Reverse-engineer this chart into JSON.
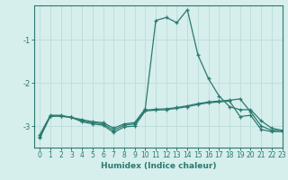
{
  "xlabel": "Humidex (Indice chaleur)",
  "ylabel": "",
  "xlim": [
    -0.5,
    23
  ],
  "ylim": [
    -3.5,
    -0.2
  ],
  "yticks": [
    -3,
    -2,
    -1
  ],
  "xticks": [
    0,
    1,
    2,
    3,
    4,
    5,
    6,
    7,
    8,
    9,
    10,
    11,
    12,
    13,
    14,
    15,
    16,
    17,
    18,
    19,
    20,
    21,
    22,
    23
  ],
  "bg_color": "#d6eeec",
  "grid_color": "#c0dedd",
  "line_color": "#2a7a70",
  "line1_x": [
    0,
    1,
    2,
    3,
    4,
    5,
    6,
    7,
    8,
    9,
    10,
    11,
    12,
    13,
    14,
    15,
    16,
    17,
    18,
    19,
    20,
    21,
    22,
    23
  ],
  "line1_y": [
    -3.2,
    -2.75,
    -2.75,
    -2.8,
    -2.85,
    -2.9,
    -2.92,
    -3.05,
    -2.95,
    -2.92,
    -2.6,
    -0.55,
    -0.48,
    -0.6,
    -0.3,
    -1.35,
    -1.9,
    -2.3,
    -2.55,
    -2.62,
    -2.62,
    -2.88,
    -3.05,
    -3.1
  ],
  "line2_x": [
    0,
    1,
    2,
    3,
    4,
    5,
    6,
    7,
    8,
    9,
    10,
    11,
    12,
    13,
    14,
    15,
    16,
    17,
    18,
    19,
    20,
    21,
    22,
    23
  ],
  "line2_y": [
    -3.25,
    -2.77,
    -2.77,
    -2.8,
    -2.88,
    -2.92,
    -2.95,
    -3.1,
    -2.98,
    -2.95,
    -2.63,
    -2.61,
    -2.6,
    -2.57,
    -2.53,
    -2.48,
    -2.44,
    -2.42,
    -2.4,
    -2.37,
    -2.67,
    -3.0,
    -3.1,
    -3.1
  ],
  "line3_x": [
    0,
    1,
    2,
    3,
    4,
    5,
    6,
    7,
    8,
    9,
    10,
    11,
    12,
    13,
    14,
    15,
    16,
    17,
    18,
    19,
    20,
    21,
    22,
    23
  ],
  "line3_y": [
    -3.28,
    -2.77,
    -2.77,
    -2.8,
    -2.9,
    -2.95,
    -2.98,
    -3.15,
    -3.02,
    -3.0,
    -2.65,
    -2.63,
    -2.62,
    -2.59,
    -2.55,
    -2.5,
    -2.46,
    -2.44,
    -2.42,
    -2.78,
    -2.75,
    -3.08,
    -3.13,
    -3.13
  ]
}
